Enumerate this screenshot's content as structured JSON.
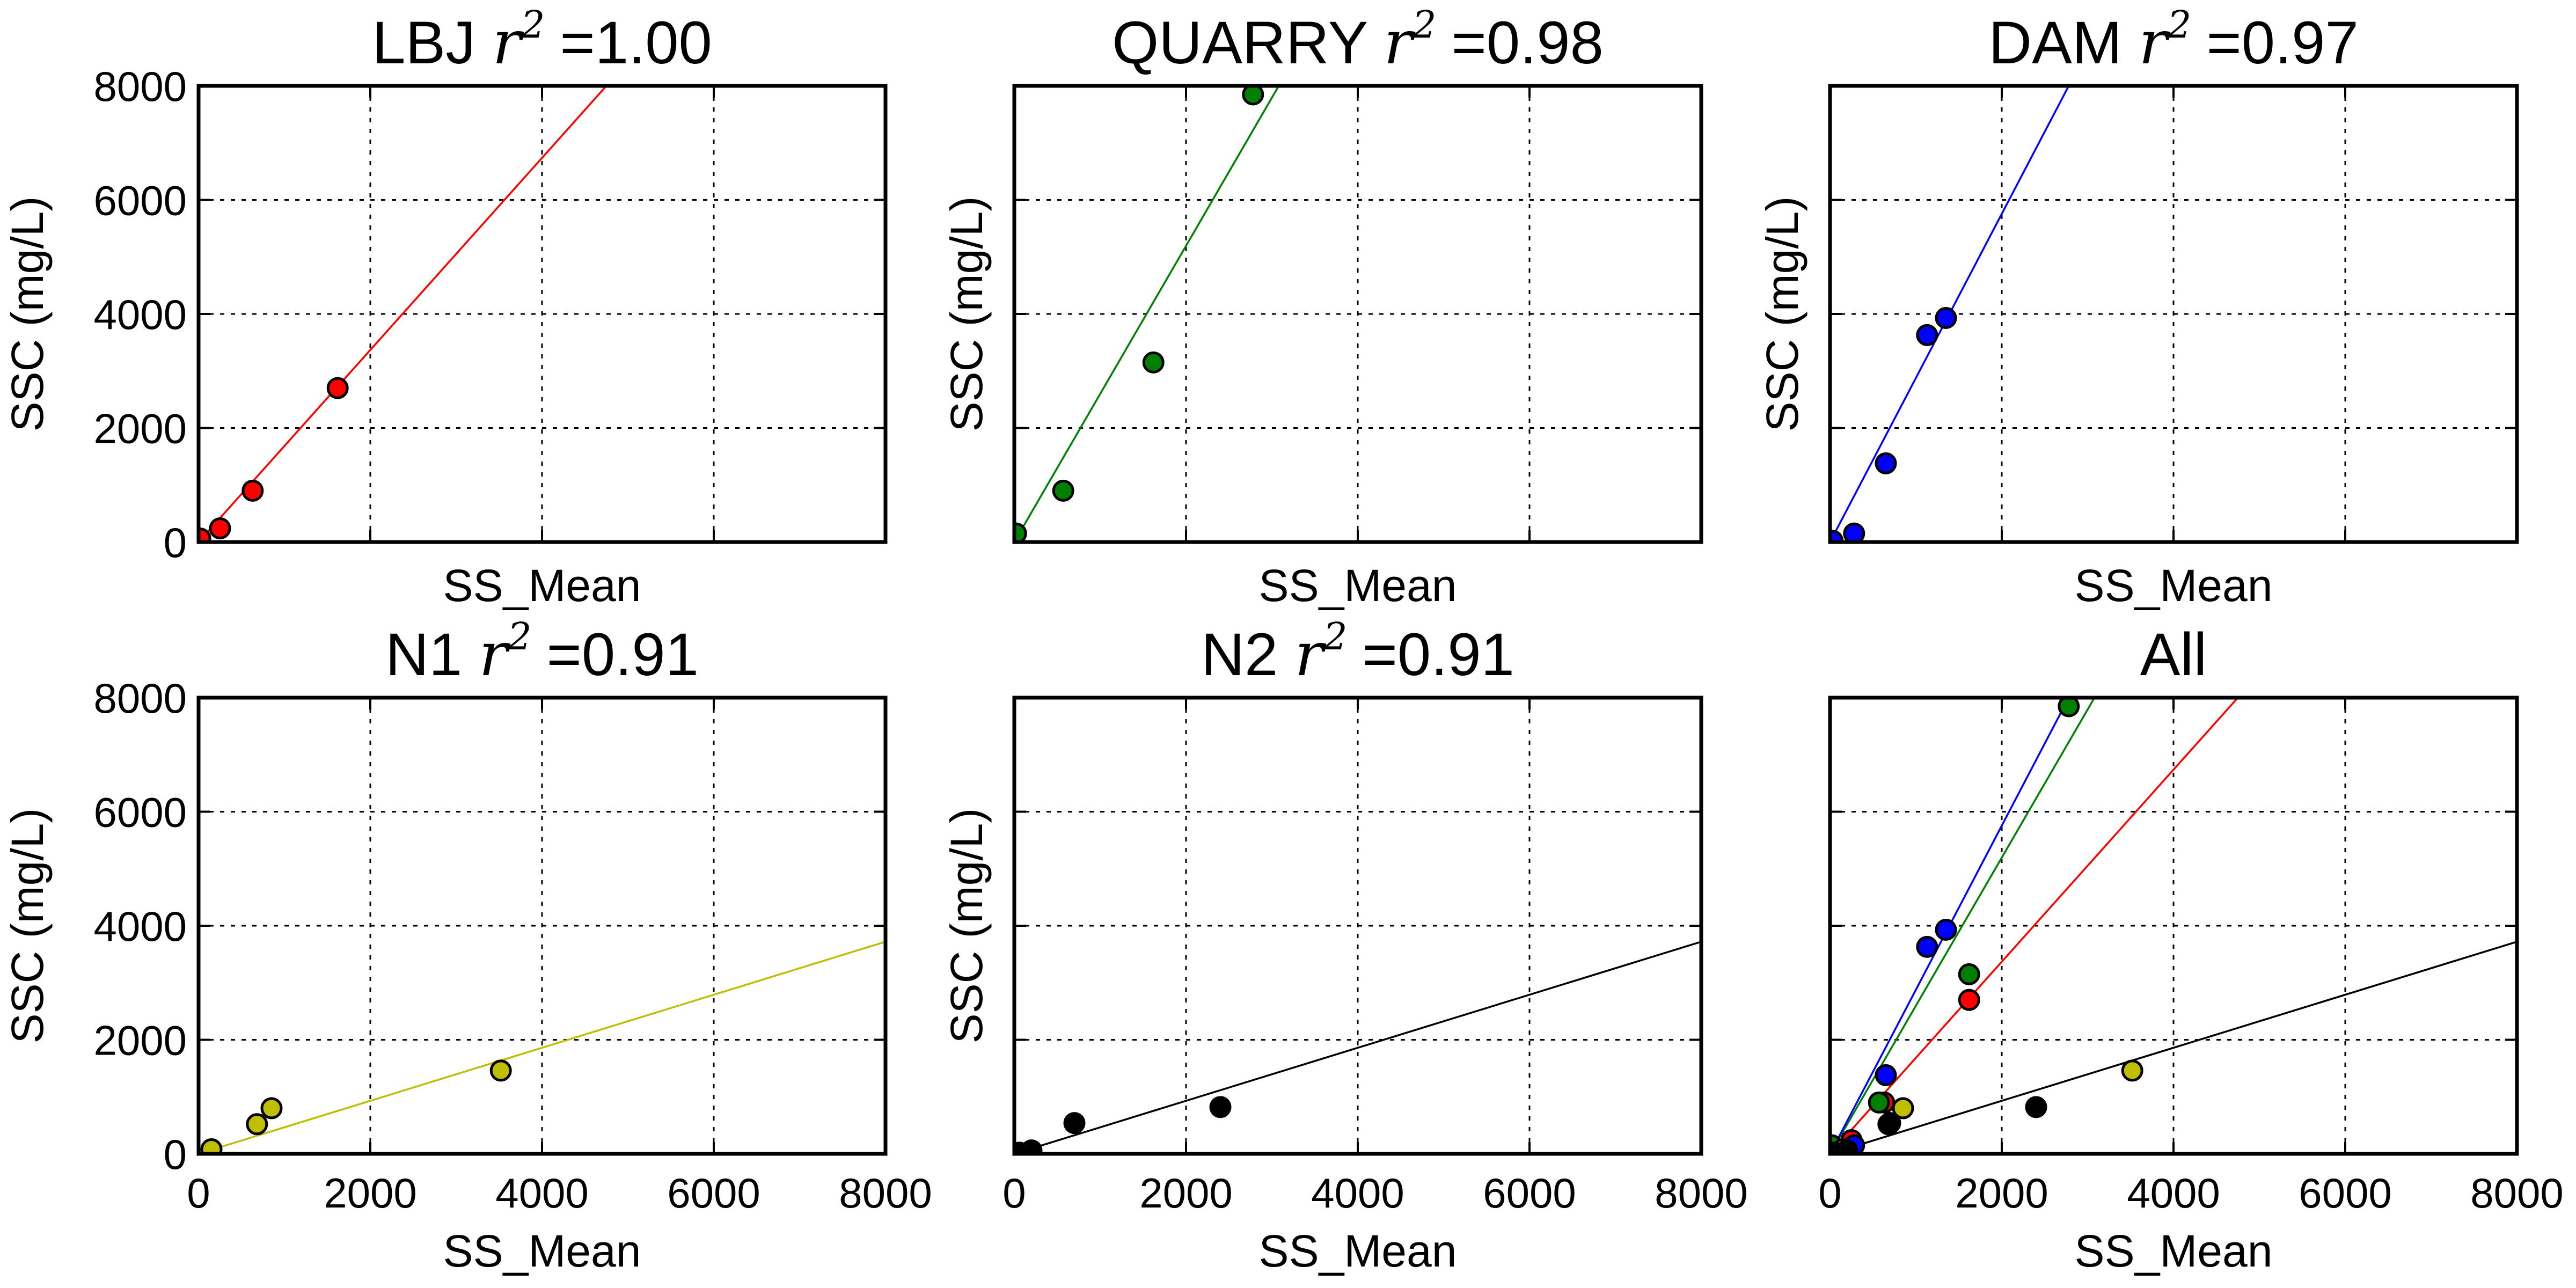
{
  "chart_data": [
    {
      "type": "scatter",
      "title_name": "LBJ",
      "r2_text": "=1.00",
      "xlabel": "SS_Mean",
      "ylabel": "SSC (mg/L)",
      "xlim": [
        0,
        8000
      ],
      "ylim": [
        0,
        8000
      ],
      "xticks": [],
      "yticks": [
        "0",
        "2000",
        "4000",
        "6000",
        "8000"
      ],
      "grid": true,
      "color": "#ff0000",
      "points": [
        [
          20,
          60
        ],
        [
          250,
          240
        ],
        [
          630,
          900
        ],
        [
          1620,
          2700
        ]
      ],
      "fit": [
        [
          0,
          0
        ],
        [
          4750,
          8000
        ]
      ]
    },
    {
      "type": "scatter",
      "title_name": "QUARRY",
      "r2_text": "=0.98",
      "xlabel": "SS_Mean",
      "ylabel": "SSC (mg/L)",
      "xlim": [
        0,
        8000
      ],
      "ylim": [
        0,
        8000
      ],
      "xticks": [],
      "yticks": [],
      "grid": true,
      "color": "#008000",
      "points": [
        [
          20,
          150
        ],
        [
          570,
          900
        ],
        [
          1620,
          3150
        ],
        [
          2780,
          7850
        ]
      ],
      "fit": [
        [
          0,
          0
        ],
        [
          3080,
          8000
        ]
      ]
    },
    {
      "type": "scatter",
      "title_name": "DAM",
      "r2_text": "=0.97",
      "xlabel": "SS_Mean",
      "ylabel": "SSC (mg/L)",
      "xlim": [
        0,
        8000
      ],
      "ylim": [
        0,
        8000
      ],
      "xticks": [],
      "yticks": [],
      "grid": true,
      "color": "#0000ff",
      "points": [
        [
          30,
          20
        ],
        [
          280,
          150
        ],
        [
          650,
          1380
        ],
        [
          1130,
          3630
        ],
        [
          1350,
          3930
        ]
      ],
      "fit": [
        [
          0,
          0
        ],
        [
          2780,
          8000
        ]
      ]
    },
    {
      "type": "scatter",
      "title_name": "N1",
      "r2_text": "=0.91",
      "xlabel": "SS_Mean",
      "ylabel": "SSC (mg/L)",
      "xlim": [
        0,
        8000
      ],
      "ylim": [
        0,
        8000
      ],
      "xticks": [
        "0",
        "2000",
        "4000",
        "6000",
        "8000"
      ],
      "yticks": [
        "0",
        "2000",
        "4000",
        "6000",
        "8000"
      ],
      "grid": true,
      "color": "#bfbf00",
      "points": [
        [
          150,
          80
        ],
        [
          680,
          520
        ],
        [
          850,
          800
        ],
        [
          3520,
          1460
        ]
      ],
      "fit": [
        [
          0,
          0
        ],
        [
          8000,
          3720
        ]
      ]
    },
    {
      "type": "scatter",
      "title_name": "N2",
      "r2_text": "=0.91",
      "xlabel": "SS_Mean",
      "ylabel": "SSC (mg/L)",
      "xlim": [
        0,
        8000
      ],
      "ylim": [
        0,
        8000
      ],
      "xticks": [
        "0",
        "2000",
        "4000",
        "6000",
        "8000"
      ],
      "yticks": [],
      "grid": true,
      "color": "#000000",
      "points": [
        [
          60,
          20
        ],
        [
          200,
          60
        ],
        [
          700,
          540
        ],
        [
          2400,
          820
        ]
      ],
      "fit": [
        [
          0,
          0
        ],
        [
          8000,
          3720
        ]
      ]
    },
    {
      "type": "scatter",
      "title": "All",
      "xlabel": "SS_Mean",
      "ylabel": "",
      "xlim": [
        0,
        8000
      ],
      "ylim": [
        0,
        8000
      ],
      "xticks": [
        "0",
        "2000",
        "4000",
        "6000",
        "8000"
      ],
      "yticks": [],
      "grid": true,
      "series": [
        {
          "color": "#ff0000",
          "points": [
            [
              20,
              60
            ],
            [
              250,
              240
            ],
            [
              630,
              900
            ],
            [
              1620,
              2700
            ]
          ],
          "fit": [
            [
              0,
              0
            ],
            [
              4750,
              8000
            ]
          ]
        },
        {
          "color": "#008000",
          "points": [
            [
              20,
              150
            ],
            [
              570,
              900
            ],
            [
              1620,
              3150
            ],
            [
              2780,
              7850
            ]
          ],
          "fit": [
            [
              0,
              0
            ],
            [
              3080,
              8000
            ]
          ]
        },
        {
          "color": "#0000ff",
          "points": [
            [
              30,
              20
            ],
            [
              280,
              150
            ],
            [
              650,
              1380
            ],
            [
              1130,
              3630
            ],
            [
              1350,
              3930
            ]
          ],
          "fit": [
            [
              0,
              0
            ],
            [
              2780,
              8000
            ]
          ]
        },
        {
          "color": "#bfbf00",
          "points": [
            [
              150,
              80
            ],
            [
              680,
              520
            ],
            [
              850,
              800
            ],
            [
              3520,
              1460
            ]
          ],
          "fit": [
            [
              0,
              0
            ],
            [
              8000,
              3720
            ]
          ]
        },
        {
          "color": "#000000",
          "points": [
            [
              60,
              20
            ],
            [
              200,
              60
            ],
            [
              700,
              540
            ],
            [
              2400,
              820
            ]
          ],
          "fit": [
            [
              0,
              0
            ],
            [
              8000,
              3720
            ]
          ]
        }
      ]
    }
  ]
}
